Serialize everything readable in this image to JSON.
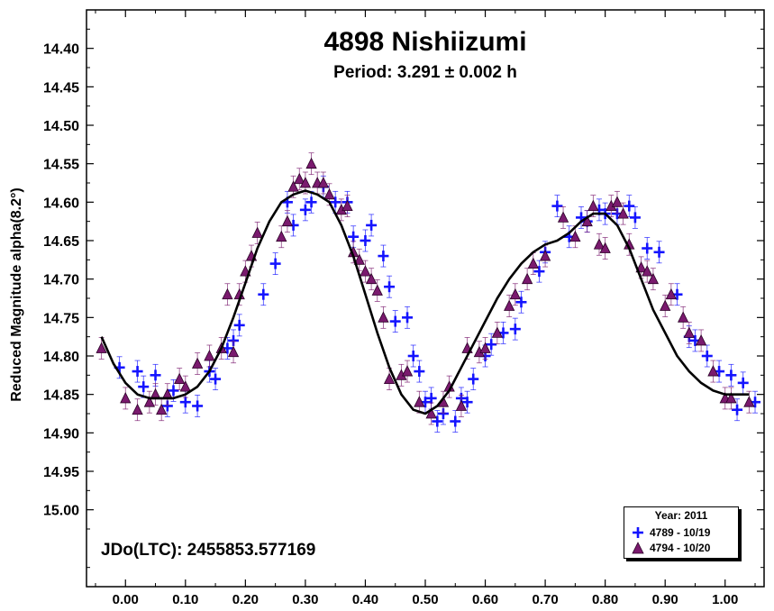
{
  "chart_data": {
    "type": "scatter",
    "title": "4898 Nishiizumi",
    "subtitle": "Period: 3.291 ± 0.002 h",
    "ylabel": "Reduced Magnitude alpha(8.2°)",
    "xlabel": "",
    "xlim": [
      -0.065,
      1.065
    ],
    "ylim": [
      14.35,
      15.1
    ],
    "y_inverted": true,
    "x_ticks": [
      0.0,
      0.1,
      0.2,
      0.3,
      0.4,
      0.5,
      0.6,
      0.7,
      0.8,
      0.9,
      1.0
    ],
    "x_tick_labels": [
      "0.00",
      "0.10",
      "0.20",
      "0.30",
      "0.40",
      "0.50",
      "0.60",
      "0.70",
      "0.80",
      "0.90",
      "1.00"
    ],
    "y_ticks": [
      14.4,
      14.45,
      14.5,
      14.55,
      14.6,
      14.65,
      14.7,
      14.75,
      14.8,
      14.85,
      14.9,
      14.95,
      15.0
    ],
    "y_tick_labels": [
      "14.40",
      "14.45",
      "14.50",
      "14.55",
      "14.60",
      "14.65",
      "14.70",
      "14.75",
      "14.80",
      "14.85",
      "14.90",
      "14.95",
      "15.00"
    ],
    "grid": false,
    "annotation": "JDo(LTC): 2455853.577169",
    "legend": {
      "title": "Year: 2011",
      "placement": "bottom-right",
      "entries": [
        "4789 - 10/19",
        "4794 - 10/20"
      ]
    },
    "series": [
      {
        "name": "4789 - 10/19",
        "marker": "plus",
        "color": "#1414ff",
        "x": [
          -0.01,
          0.02,
          0.03,
          0.05,
          0.07,
          0.08,
          0.1,
          0.12,
          0.14,
          0.15,
          0.17,
          0.18,
          0.19,
          0.23,
          0.25,
          0.27,
          0.28,
          0.3,
          0.31,
          0.33,
          0.35,
          0.37,
          0.38,
          0.4,
          0.41,
          0.43,
          0.44,
          0.45,
          0.47,
          0.48,
          0.49,
          0.5,
          0.51,
          0.52,
          0.53,
          0.55,
          0.56,
          0.57,
          0.58,
          0.6,
          0.61,
          0.63,
          0.65,
          0.66,
          0.69,
          0.7,
          0.72,
          0.74,
          0.76,
          0.77,
          0.79,
          0.8,
          0.82,
          0.84,
          0.85,
          0.87,
          0.89,
          0.92,
          0.94,
          0.95,
          0.97,
          0.99,
          1.01,
          1.02,
          1.03,
          1.05
        ],
        "y": [
          14.815,
          14.82,
          14.84,
          14.825,
          14.865,
          14.845,
          14.86,
          14.865,
          14.82,
          14.83,
          14.79,
          14.78,
          14.76,
          14.72,
          14.68,
          14.6,
          14.63,
          14.61,
          14.6,
          14.58,
          14.6,
          14.6,
          14.645,
          14.65,
          14.63,
          14.67,
          14.71,
          14.755,
          14.75,
          14.8,
          14.82,
          14.86,
          14.855,
          14.885,
          14.875,
          14.885,
          14.855,
          14.86,
          14.83,
          14.8,
          14.785,
          14.77,
          14.765,
          14.73,
          14.69,
          14.665,
          14.605,
          14.645,
          14.62,
          14.625,
          14.61,
          14.615,
          14.615,
          14.605,
          14.62,
          14.66,
          14.665,
          14.72,
          14.775,
          14.78,
          14.8,
          14.82,
          14.825,
          14.87,
          14.835,
          14.86
        ]
      },
      {
        "name": "4794 - 10/20",
        "marker": "triangle",
        "color": "#7a1a6e",
        "x": [
          -0.04,
          0.0,
          0.02,
          0.04,
          0.05,
          0.06,
          0.07,
          0.09,
          0.1,
          0.12,
          0.14,
          0.16,
          0.17,
          0.18,
          0.19,
          0.2,
          0.21,
          0.22,
          0.26,
          0.27,
          0.28,
          0.29,
          0.3,
          0.31,
          0.32,
          0.33,
          0.34,
          0.36,
          0.37,
          0.38,
          0.39,
          0.4,
          0.41,
          0.42,
          0.43,
          0.44,
          0.46,
          0.47,
          0.49,
          0.51,
          0.53,
          0.54,
          0.56,
          0.57,
          0.59,
          0.6,
          0.62,
          0.64,
          0.65,
          0.67,
          0.68,
          0.7,
          0.73,
          0.75,
          0.77,
          0.78,
          0.79,
          0.8,
          0.81,
          0.82,
          0.83,
          0.84,
          0.86,
          0.87,
          0.88,
          0.9,
          0.91,
          0.93,
          0.94,
          0.96,
          0.98,
          1.0,
          1.01,
          1.04
        ],
        "y": [
          14.79,
          14.855,
          14.87,
          14.86,
          14.85,
          14.87,
          14.85,
          14.83,
          14.84,
          14.81,
          14.8,
          14.79,
          14.72,
          14.795,
          14.72,
          14.69,
          14.67,
          14.64,
          14.645,
          14.625,
          14.58,
          14.57,
          14.575,
          14.55,
          14.575,
          14.575,
          14.59,
          14.61,
          14.605,
          14.665,
          14.675,
          14.69,
          14.7,
          14.715,
          14.75,
          14.83,
          14.825,
          14.82,
          14.86,
          14.875,
          14.86,
          14.84,
          14.865,
          14.79,
          14.795,
          14.79,
          14.77,
          14.735,
          14.72,
          14.7,
          14.68,
          14.67,
          14.62,
          14.645,
          14.625,
          14.605,
          14.655,
          14.66,
          14.605,
          14.6,
          14.615,
          14.655,
          14.685,
          14.69,
          14.7,
          14.735,
          14.72,
          14.75,
          14.77,
          14.78,
          14.82,
          14.855,
          14.855,
          14.86
        ]
      },
      {
        "name": "",
        "marker": "line",
        "color": "#000000",
        "x": [
          -0.04,
          -0.02,
          0.0,
          0.02,
          0.04,
          0.06,
          0.08,
          0.1,
          0.12,
          0.14,
          0.16,
          0.18,
          0.2,
          0.22,
          0.24,
          0.26,
          0.28,
          0.3,
          0.32,
          0.34,
          0.36,
          0.38,
          0.4,
          0.42,
          0.44,
          0.46,
          0.48,
          0.5,
          0.52,
          0.54,
          0.56,
          0.58,
          0.6,
          0.62,
          0.64,
          0.66,
          0.68,
          0.7,
          0.72,
          0.74,
          0.76,
          0.78,
          0.8,
          0.82,
          0.84,
          0.86,
          0.88,
          0.9,
          0.92,
          0.94,
          0.96,
          0.98,
          1.0,
          1.02,
          1.04
        ],
        "y": [
          14.775,
          14.81,
          14.835,
          14.85,
          14.855,
          14.855,
          14.855,
          14.85,
          14.84,
          14.82,
          14.79,
          14.75,
          14.705,
          14.66,
          14.625,
          14.6,
          14.59,
          14.585,
          14.59,
          14.6,
          14.63,
          14.67,
          14.72,
          14.77,
          14.815,
          14.85,
          14.87,
          14.875,
          14.865,
          14.845,
          14.815,
          14.785,
          14.755,
          14.725,
          14.7,
          14.68,
          14.665,
          14.655,
          14.65,
          14.64,
          14.625,
          14.615,
          14.615,
          14.63,
          14.66,
          14.7,
          14.74,
          14.77,
          14.8,
          14.82,
          14.835,
          14.845,
          14.85,
          14.85,
          14.85
        ]
      }
    ]
  }
}
